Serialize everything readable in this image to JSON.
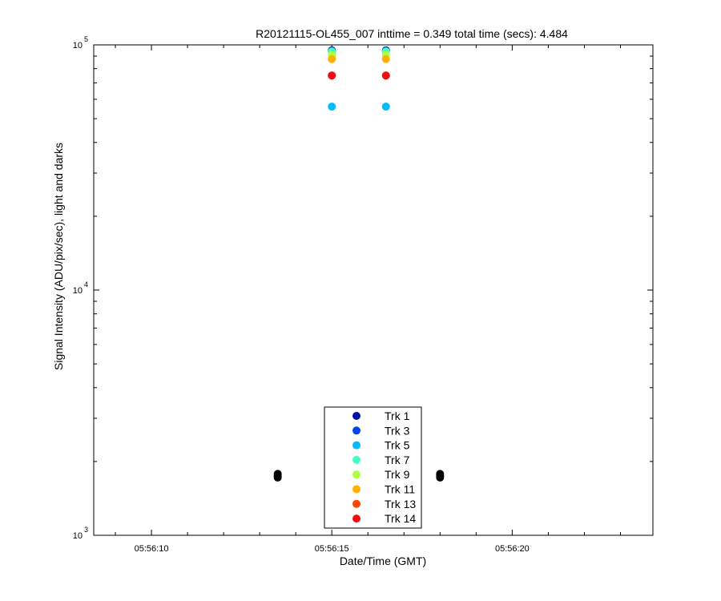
{
  "chart_data": {
    "type": "scatter",
    "title": "R20121115-OL455_007 inttime = 0.349 total time (secs): 4.484",
    "xlabel": "Date/Time (GMT)",
    "ylabel": "Signal Intensity (ADU/pix/sec), light and darks",
    "x_scale": "time",
    "y_scale": "log",
    "xlim": [
      "05:56:08.4",
      "05:56:23.9"
    ],
    "ylim": [
      1000,
      100000
    ],
    "x_ticks": [
      "05:56:10",
      "05:56:15",
      "05:56:20"
    ],
    "y_ticks": [
      {
        "base": "10",
        "exp": "3",
        "value": 1000
      },
      {
        "base": "10",
        "exp": "4",
        "value": 10000
      },
      {
        "base": "10",
        "exp": "5",
        "value": 100000
      }
    ],
    "grid": false,
    "legend_position": "bottom-center",
    "series": [
      {
        "name": "Trk 1",
        "color": "#0010aa",
        "x": [
          "05:56:15.0",
          "05:56:16.5"
        ],
        "y": [
          95000,
          95000
        ]
      },
      {
        "name": "Trk 3",
        "color": "#0044ee",
        "x": [
          "05:56:15.0",
          "05:56:16.5"
        ],
        "y": [
          94500,
          94500
        ]
      },
      {
        "name": "Trk 5",
        "color": "#00bbff",
        "x": [
          "05:56:15.0",
          "05:56:16.5"
        ],
        "y": [
          56000,
          56000
        ]
      },
      {
        "name": "Trk 7",
        "color": "#40ffc0",
        "x": [
          "05:56:15.0",
          "05:56:16.5"
        ],
        "y": [
          94000,
          94000
        ]
      },
      {
        "name": "Trk 9",
        "color": "#b0ff40",
        "x": [
          "05:56:15.0",
          "05:56:16.5"
        ],
        "y": [
          91000,
          91000
        ]
      },
      {
        "name": "Trk 11",
        "color": "#ffb000",
        "x": [
          "05:56:15.0",
          "05:56:16.5"
        ],
        "y": [
          87500,
          87500
        ]
      },
      {
        "name": "Trk 13",
        "color": "#ff4400",
        "x": [
          "05:56:15.0",
          "05:56:16.5"
        ],
        "y": [
          75000,
          75000
        ]
      },
      {
        "name": "Trk 14",
        "color": "#ee1010",
        "x": [
          "05:56:15.0",
          "05:56:16.5"
        ],
        "y": [
          75000,
          75000
        ]
      }
    ],
    "dark_points": {
      "color": "#000000",
      "x": [
        "05:56:13.5",
        "05:56:13.5",
        "05:56:13.5",
        "05:56:18.0",
        "05:56:18.0",
        "05:56:18.0"
      ],
      "y": [
        1720,
        1750,
        1780,
        1720,
        1750,
        1780
      ]
    }
  }
}
